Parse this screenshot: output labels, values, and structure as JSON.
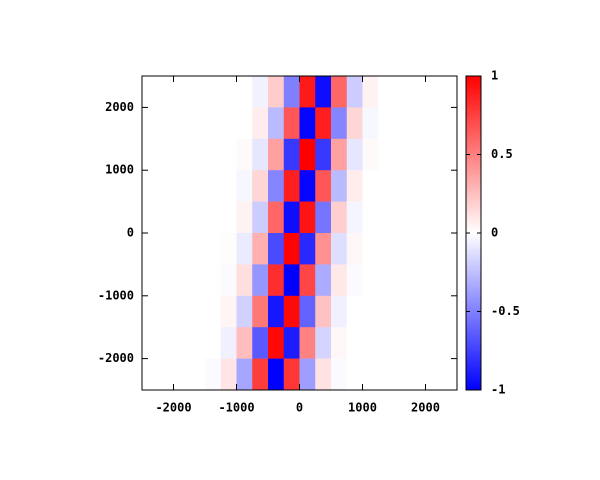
{
  "chart_data": {
    "type": "heatmap",
    "x": [
      -2375,
      -2125,
      -1875,
      -1625,
      -1375,
      -1125,
      -875,
      -625,
      -375,
      -125,
      125,
      375,
      625,
      875,
      1125,
      1375,
      1625,
      1875,
      2125,
      2375
    ],
    "y": [
      2250,
      1750,
      1250,
      750,
      250,
      -250,
      -750,
      -1250,
      -1750,
      -2250
    ],
    "z": [
      [
        0,
        0,
        0,
        0,
        0,
        0,
        0,
        -0.05,
        0.2,
        -0.5,
        0.9,
        -0.95,
        0.6,
        -0.2,
        0.05,
        0,
        0,
        0,
        0,
        0
      ],
      [
        0,
        0,
        0,
        0,
        0,
        0,
        0,
        0.07,
        -0.27,
        0.66,
        -0.98,
        0.88,
        -0.48,
        0.16,
        -0.03,
        0,
        0,
        0,
        0,
        0
      ],
      [
        0,
        0,
        0,
        0,
        0,
        0,
        0.02,
        -0.1,
        0.37,
        -0.78,
        1,
        -0.78,
        0.37,
        -0.1,
        0.02,
        0,
        0,
        0,
        0,
        0
      ],
      [
        0,
        0,
        0,
        0,
        0,
        0,
        -0.03,
        0.16,
        -0.48,
        0.88,
        -0.98,
        0.66,
        -0.27,
        0.07,
        0,
        0,
        0,
        0,
        0,
        0
      ],
      [
        0,
        0,
        0,
        0,
        0,
        0,
        0.05,
        -0.2,
        0.6,
        -0.95,
        0.92,
        -0.54,
        0.19,
        -0.04,
        0,
        0,
        0,
        0,
        0,
        0
      ],
      [
        0,
        0,
        0,
        0,
        0,
        0.01,
        -0.08,
        0.31,
        -0.71,
        0.99,
        -0.84,
        0.43,
        -0.13,
        0.03,
        0,
        0,
        0,
        0,
        0,
        0
      ],
      [
        0,
        0,
        0,
        0,
        0,
        -0.02,
        0.13,
        -0.41,
        0.82,
        -1,
        0.73,
        -0.33,
        0.09,
        -0.02,
        0,
        0,
        0,
        0,
        0,
        0
      ],
      [
        0,
        0,
        0,
        0,
        0,
        0.04,
        -0.18,
        0.53,
        -0.91,
        0.96,
        -0.61,
        0.24,
        -0.06,
        0,
        0,
        0,
        0,
        0,
        0,
        0
      ],
      [
        0,
        0,
        0,
        0,
        0,
        -0.06,
        0.26,
        -0.65,
        0.97,
        -0.89,
        0.49,
        -0.17,
        0.03,
        0,
        0,
        0,
        0,
        0,
        0,
        0
      ],
      [
        0,
        0,
        0,
        0,
        -0.02,
        0.1,
        -0.35,
        0.76,
        -1,
        0.79,
        -0.38,
        0.11,
        -0.02,
        0,
        0,
        0,
        0,
        0,
        0,
        0
      ]
    ],
    "xlim": [
      -2500,
      2500
    ],
    "ylim": [
      -2500,
      2500
    ],
    "xticks": [
      -2000,
      -1000,
      0,
      1000,
      2000
    ],
    "yticks": [
      -2000,
      -1000,
      0,
      1000,
      2000
    ],
    "zlim": [
      -1,
      1
    ],
    "zticks": [
      -1,
      -0.5,
      0,
      0.5,
      1
    ],
    "colormap": [
      "#0000ff",
      "#ffffff",
      "#ff0000"
    ]
  }
}
